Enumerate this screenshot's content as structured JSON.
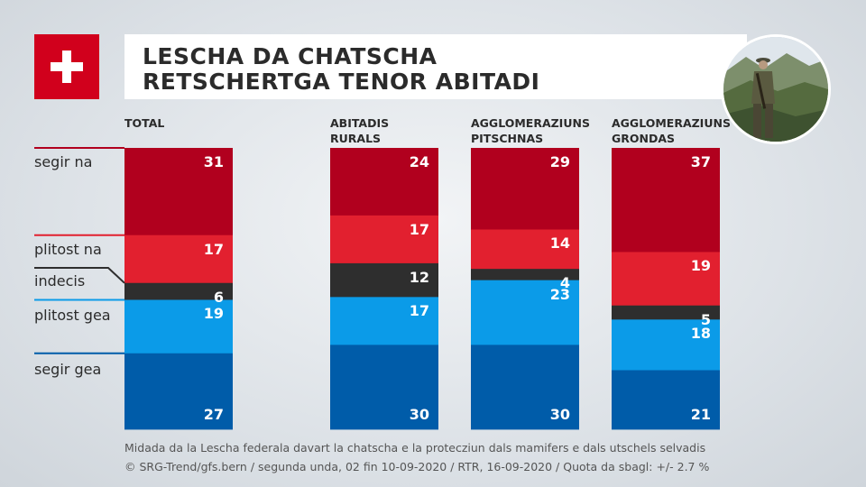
{
  "title": {
    "line1": "LESCHA DA CHATSCHA",
    "line2": "RETSCHERTGA TENOR ABITADI"
  },
  "icons": {
    "flag": "swiss-flag-icon",
    "photo": "hunter-photo"
  },
  "colors": {
    "segir_na": "#b1001e",
    "plitost_na": "#e2202f",
    "indecis": "#2e2e2e",
    "plitost_gea": "#0b9be8",
    "segir_gea": "#005ca9"
  },
  "chart_data": {
    "type": "bar",
    "stacked": true,
    "categories": [
      "TOTAL",
      "ABITADIS RURALS",
      "AGGLOMERAZIUNS PITSCHNAS",
      "AGGLOMERAZIUNS GRONDAS"
    ],
    "category_lines": [
      [
        "TOTAL"
      ],
      [
        "ABITADIS",
        "RURALS"
      ],
      [
        "AGGLOMERAZIUNS",
        "PITSCHNAS"
      ],
      [
        "AGGLOMERAZIUNS",
        "GRONDAS"
      ]
    ],
    "series": [
      {
        "name": "segir na",
        "values": [
          31,
          24,
          29,
          37
        ]
      },
      {
        "name": "plitost na",
        "values": [
          17,
          17,
          14,
          19
        ]
      },
      {
        "name": "indecis",
        "values": [
          6,
          12,
          4,
          5
        ]
      },
      {
        "name": "plitost gea",
        "values": [
          19,
          17,
          23,
          18
        ]
      },
      {
        "name": "segir gea",
        "values": [
          27,
          30,
          30,
          21
        ]
      }
    ],
    "unit": "%"
  },
  "footer": {
    "line1": "Midada da la Lescha federala davart la chatscha e la protecziun dals mamifers e dals utschels selvadis",
    "line2": "© SRG-Trend/gfs.bern  /  segunda unda, 02 fin 10-09-2020  /  RTR, 16-09-2020  /  Quota da sbagl: +/- 2.7 %"
  }
}
